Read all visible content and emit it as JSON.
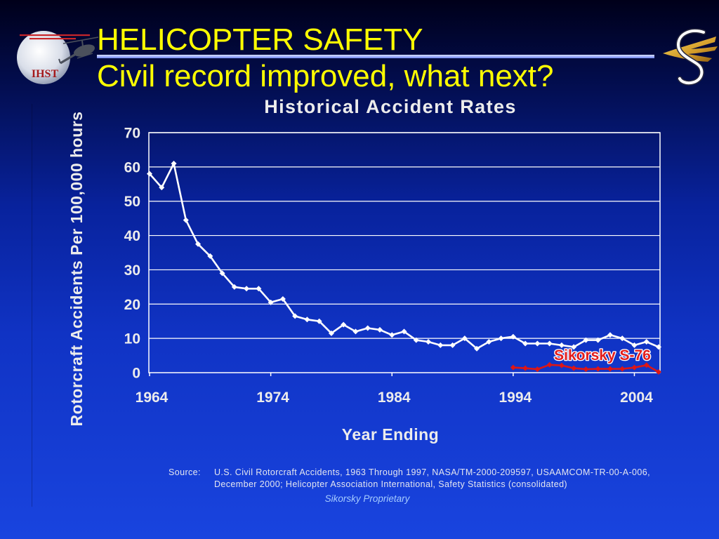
{
  "slide": {
    "title": "HELICOPTER SAFETY",
    "subtitle": "Civil record improved, what next?"
  },
  "logos": {
    "ihst_text": "IHST",
    "left_icon": "ihst-globe-helicopter-logo",
    "right_icon": "sikorsky-eagle-s-logo"
  },
  "colors": {
    "title": "#ffff00",
    "background_top": "#00001a",
    "background_bottom": "#1944df",
    "chart_text": "#ececec",
    "proprietary_text": "#a6ccff"
  },
  "chart_data": {
    "type": "line",
    "title": "Historical Accident Rates",
    "xlabel": "Year Ending",
    "ylabel": "Rotorcraft Accidents Per 100,000 hours",
    "xlim": [
      1964,
      2006
    ],
    "ylim": [
      0,
      70
    ],
    "x_ticks": [
      1964,
      1974,
      1984,
      1994,
      2004
    ],
    "y_ticks": [
      0,
      10,
      20,
      30,
      40,
      50,
      60,
      70
    ],
    "grid": true,
    "series": [
      {
        "color": "#ffffff",
        "x": [
          1964,
          1965,
          1966,
          1967,
          1968,
          1969,
          1970,
          1971,
          1972,
          1973,
          1974,
          1975,
          1976,
          1977,
          1978,
          1979,
          1980,
          1981,
          1982,
          1983,
          1984,
          1985,
          1986,
          1987,
          1988,
          1989,
          1990,
          1991,
          1992,
          1993,
          1994,
          1995,
          1996,
          1997,
          1998,
          1999,
          2000,
          2001,
          2002,
          2003,
          2004,
          2005,
          2006
        ],
        "values": [
          58,
          54,
          61,
          44.5,
          37.5,
          34,
          29,
          25,
          24.5,
          24.5,
          20.5,
          21.5,
          16.5,
          15.5,
          15,
          11.5,
          14,
          12,
          13,
          12.5,
          11,
          12,
          9.5,
          9,
          8,
          8,
          10,
          7,
          9,
          10,
          10.5,
          8.5,
          8.5,
          8.5,
          8,
          7.5,
          9.5,
          9.5,
          11,
          10,
          8,
          9,
          7.5
        ]
      },
      {
        "name": "Sikorsky S-76",
        "color": "#dd1616",
        "x": [
          1994,
          1995,
          1996,
          1997,
          1998,
          1999,
          2000,
          2001,
          2002,
          2003,
          2004,
          2005,
          2006
        ],
        "values": [
          1.5,
          1.3,
          1.0,
          2.3,
          2.1,
          1.3,
          1.0,
          1.1,
          1.1,
          1.1,
          1.5,
          2.2,
          0.2
        ]
      }
    ]
  },
  "source": {
    "label": "Source:",
    "line1": "U.S. Civil Rotorcraft Accidents, 1963 Through 1997, NASA/TM-2000-209597, USAAMCOM-TR-00-A-006,",
    "line2": "December 2000; Helicopter Association International, Safety Statistics (consolidated)",
    "proprietary": "Sikorsky Proprietary"
  }
}
